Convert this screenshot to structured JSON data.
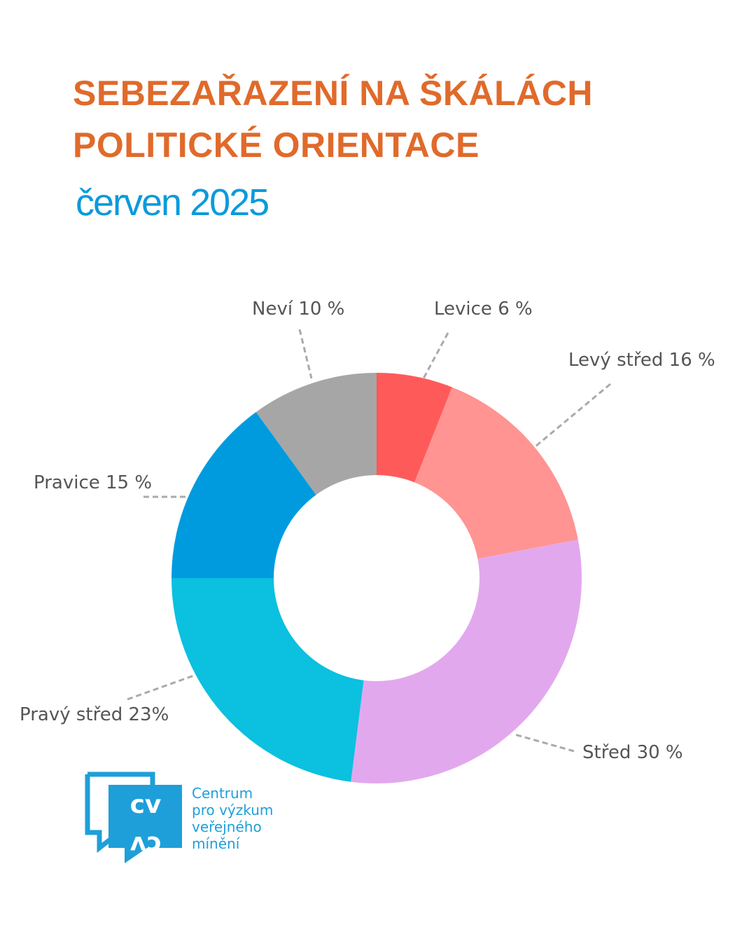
{
  "header": {
    "title_line1": "SEBEZAŘAZENÍ NA ŠKÁLÁCH",
    "title_line2": "POLITICKÉ ORIENTACE",
    "subtitle": "červen 2025"
  },
  "chart_data": {
    "type": "pie",
    "variant": "donut",
    "start_angle": "top, clockwise",
    "categories": [
      "Levice",
      "Levý střed",
      "Střed",
      "Pravý střed",
      "Pravice",
      "Neví"
    ],
    "values": [
      6,
      16,
      30,
      23,
      15,
      10
    ],
    "unit": "%",
    "colors": [
      "#FF5A5A",
      "#FF9492",
      "#E2A8EE",
      "#0CC0DF",
      "#009BDF",
      "#A6A6A6"
    ],
    "data_labels": [
      "Levice 6 %",
      "Levý střed 16 %",
      "Střed 30 %",
      "Pravý střed 23%",
      "Pravice 15 %",
      "Neví 10 %"
    ],
    "legend": "none"
  },
  "logo": {
    "mark": "CVVM",
    "lines": [
      "Centrum",
      "pro výzkum",
      "veřejného",
      "mínění"
    ],
    "color": "#1E9FD9"
  }
}
